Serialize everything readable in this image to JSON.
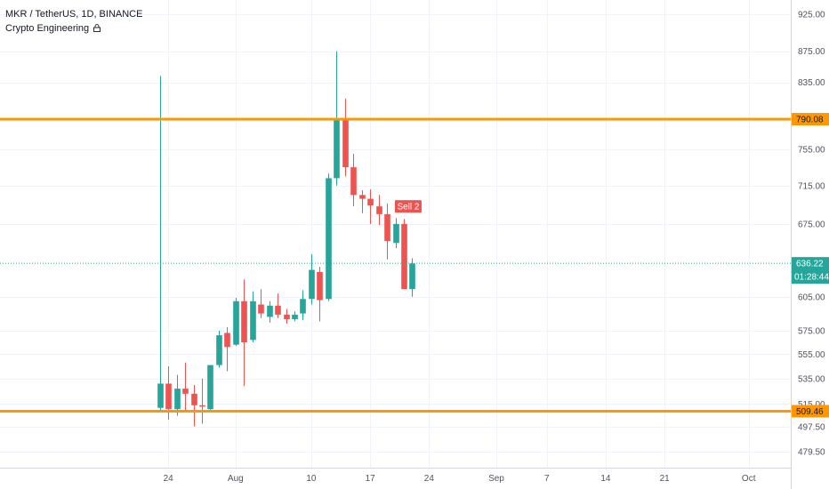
{
  "legend": {
    "title": "MKR / TetherUS, 1D, BINANCE",
    "indicator": "Crypto Engineering",
    "indicator_icon": "lock-icon"
  },
  "colors": {
    "up": "#26a69a",
    "down": "#ef5350",
    "level": "#ff9800",
    "price_line": "#26a69a",
    "grid": "#f0f3fa",
    "axis_text": "#50535e",
    "signal_bg": "#ef5350",
    "signal_text": "#ffffff"
  },
  "chart_data": {
    "type": "candlestick",
    "title": "MKR / TetherUS, 1D, BINANCE",
    "x_scale": "date",
    "x_ticks": [
      {
        "date": "2020-07-24",
        "label": "24"
      },
      {
        "date": "2020-08-01",
        "label": "Aug"
      },
      {
        "date": "2020-08-10",
        "label": "10"
      },
      {
        "date": "2020-08-17",
        "label": "17"
      },
      {
        "date": "2020-08-24",
        "label": "24"
      },
      {
        "date": "2020-09-01",
        "label": "Sep"
      },
      {
        "date": "2020-09-07",
        "label": "7"
      },
      {
        "date": "2020-09-14",
        "label": "14"
      },
      {
        "date": "2020-09-21",
        "label": "21"
      },
      {
        "date": "2020-10-01",
        "label": "Oct"
      }
    ],
    "x_range": [
      "2020-07-04",
      "2020-10-06"
    ],
    "y_scale": "log",
    "y_range": [
      468,
      945
    ],
    "y_ticks": [
      925.0,
      875.0,
      835.0,
      755.0,
      715.0,
      675.0,
      605.0,
      575.0,
      555.0,
      535.0,
      515.0,
      497.5,
      479.5
    ],
    "y_tick_labels": [
      "925.00",
      "875.00",
      "835.00",
      "755.00",
      "715.00",
      "675.00",
      "605.00",
      "575.00",
      "555.00",
      "535.00",
      "515.00",
      "497.50",
      "479.50"
    ],
    "grid": true,
    "candles": [
      {
        "date": "2020-07-23",
        "open": 512,
        "high": 843,
        "low": 509,
        "close": 531
      },
      {
        "date": "2020-07-24",
        "open": 531,
        "high": 545,
        "low": 503,
        "close": 511
      },
      {
        "date": "2020-07-25",
        "open": 511,
        "high": 538,
        "low": 506,
        "close": 527
      },
      {
        "date": "2020-07-26",
        "open": 527,
        "high": 548,
        "low": 510,
        "close": 523
      },
      {
        "date": "2020-07-27",
        "open": 523,
        "high": 530,
        "low": 498,
        "close": 514
      },
      {
        "date": "2020-07-28",
        "open": 514,
        "high": 535,
        "low": 500,
        "close": 513
      },
      {
        "date": "2020-07-29",
        "open": 511,
        "high": 545,
        "low": 509,
        "close": 546
      },
      {
        "date": "2020-07-30",
        "open": 546,
        "high": 575,
        "low": 544,
        "close": 571
      },
      {
        "date": "2020-07-31",
        "open": 573,
        "high": 578,
        "low": 541,
        "close": 561
      },
      {
        "date": "2020-08-01",
        "open": 563,
        "high": 604,
        "low": 562,
        "close": 601
      },
      {
        "date": "2020-08-02",
        "open": 601,
        "high": 621,
        "low": 529,
        "close": 565
      },
      {
        "date": "2020-08-03",
        "open": 567,
        "high": 610,
        "low": 565,
        "close": 601
      },
      {
        "date": "2020-08-04",
        "open": 598,
        "high": 612,
        "low": 586,
        "close": 590
      },
      {
        "date": "2020-08-05",
        "open": 587,
        "high": 601,
        "low": 582,
        "close": 597
      },
      {
        "date": "2020-08-06",
        "open": 597,
        "high": 608,
        "low": 586,
        "close": 589
      },
      {
        "date": "2020-08-07",
        "open": 589,
        "high": 594,
        "low": 581,
        "close": 585
      },
      {
        "date": "2020-08-08",
        "open": 585,
        "high": 592,
        "low": 583,
        "close": 589
      },
      {
        "date": "2020-08-09",
        "open": 590,
        "high": 611,
        "low": 584,
        "close": 603
      },
      {
        "date": "2020-08-10",
        "open": 603,
        "high": 645,
        "low": 598,
        "close": 630
      },
      {
        "date": "2020-08-11",
        "open": 628,
        "high": 633,
        "low": 583,
        "close": 602
      },
      {
        "date": "2020-08-12",
        "open": 603,
        "high": 728,
        "low": 601,
        "close": 723
      },
      {
        "date": "2020-08-13",
        "open": 723,
        "high": 875,
        "low": 715,
        "close": 790
      },
      {
        "date": "2020-08-14",
        "open": 790,
        "high": 815,
        "low": 725,
        "close": 735
      },
      {
        "date": "2020-08-15",
        "open": 735,
        "high": 750,
        "low": 693,
        "close": 705
      },
      {
        "date": "2020-08-16",
        "open": 705,
        "high": 710,
        "low": 686,
        "close": 701
      },
      {
        "date": "2020-08-17",
        "open": 701,
        "high": 711,
        "low": 675,
        "close": 694
      },
      {
        "date": "2020-08-18",
        "open": 693,
        "high": 705,
        "low": 674,
        "close": 685
      },
      {
        "date": "2020-08-19",
        "open": 685,
        "high": 696,
        "low": 640,
        "close": 658
      },
      {
        "date": "2020-08-20",
        "open": 656,
        "high": 681,
        "low": 651,
        "close": 675
      },
      {
        "date": "2020-08-21",
        "open": 675,
        "high": 680,
        "low": 615,
        "close": 612
      },
      {
        "date": "2020-08-22",
        "open": 612,
        "high": 641,
        "low": 605,
        "close": 636
      }
    ],
    "levels": [
      {
        "value": 790.08,
        "label": "790.08"
      },
      {
        "value": 509.46,
        "label": "509.46"
      }
    ],
    "last_price": {
      "value": 636.22,
      "label": "636.22",
      "countdown": "01:28:44"
    },
    "annotations": [
      {
        "date": "2020-08-21",
        "price": 693,
        "text": "Sell 2"
      }
    ]
  }
}
